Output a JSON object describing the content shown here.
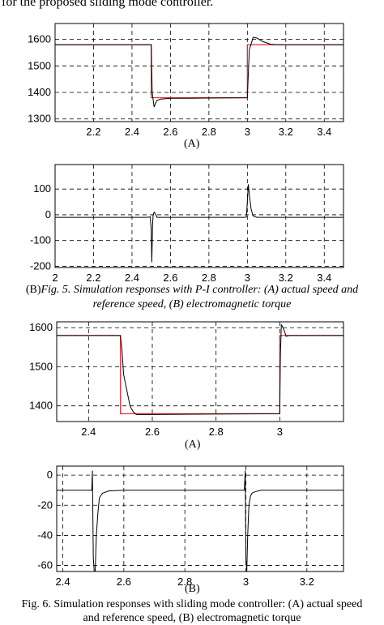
{
  "top_text": "for the proposed sliding mode controller.",
  "captions": {
    "a1": "(A)",
    "fig5_prefix": "(B)",
    "fig5_line1": "Fig. 5. Simulation responses with P-I controller: (A) actual speed and",
    "fig5_line2": "reference speed, (B) electromagnetic torque",
    "a2": "(A)",
    "b2": "(B)",
    "fig6_line1": "Fig. 6. Simulation responses with sliding mode controller: (A) actual speed",
    "fig6_line2": "and reference speed, (B) electromagnetic torque"
  },
  "colors": {
    "reference": "#e8262b",
    "actual": "#000000",
    "grid": "#000000"
  },
  "chart_data": [
    {
      "type": "line",
      "title": "",
      "xlabel": "",
      "ylabel": "",
      "xlim": [
        2.0,
        3.5
      ],
      "ylim": [
        1290,
        1660
      ],
      "xticks": [
        "2.2",
        "2.4",
        "2.6",
        "2.8",
        "3",
        "3.2",
        "3.4"
      ],
      "yticks": [
        "1300",
        "1400",
        "1500",
        "1600"
      ],
      "grid": true,
      "series": [
        {
          "role": "reference",
          "color": "#e8262b",
          "x": [
            2.0,
            2.5,
            2.5,
            3.0,
            3.0,
            3.5
          ],
          "y": [
            1580,
            1580,
            1380,
            1380,
            1580,
            1580
          ]
        },
        {
          "role": "actual",
          "color": "#000000",
          "x": [
            2.0,
            2.5,
            2.505,
            2.515,
            2.52,
            2.53,
            2.55,
            2.6,
            2.7,
            3.0,
            3.01,
            3.03,
            3.05,
            3.08,
            3.12,
            3.15,
            3.5
          ],
          "y": [
            1580,
            1580,
            1400,
            1345,
            1355,
            1370,
            1375,
            1378,
            1378,
            1380,
            1560,
            1608,
            1605,
            1592,
            1582,
            1580,
            1580
          ]
        }
      ]
    },
    {
      "type": "line",
      "title": "",
      "xlabel": "",
      "ylabel": "",
      "xlim": [
        2.0,
        3.5
      ],
      "ylim": [
        -205,
        195
      ],
      "xticks": [
        "2",
        "2.2",
        "2.4",
        "2.6",
        "2.8",
        "3",
        "3.2",
        "3.4"
      ],
      "yticks": [
        "100",
        "0",
        "-100",
        "-200"
      ],
      "grid": true,
      "series": [
        {
          "role": "torque",
          "color": "#000000",
          "x": [
            2.0,
            2.48,
            2.495,
            2.5,
            2.503,
            2.507,
            2.51,
            2.515,
            2.52,
            2.53,
            2.6,
            2.99,
            2.995,
            3.0,
            3.005,
            3.01,
            3.02,
            3.03,
            3.05,
            3.5
          ],
          "y": [
            -10,
            -10,
            -8,
            -60,
            -185,
            -40,
            0,
            10,
            5,
            -10,
            -10,
            -10,
            -8,
            50,
            118,
            80,
            20,
            -5,
            -10,
            -10
          ]
        }
      ]
    },
    {
      "type": "line",
      "title": "",
      "xlabel": "",
      "ylabel": "",
      "xlim": [
        2.3,
        3.2
      ],
      "ylim": [
        1360,
        1615
      ],
      "xticks": [
        "2.4",
        "2.6",
        "2.8",
        "3"
      ],
      "yticks": [
        "1400",
        "1500",
        "1600"
      ],
      "grid": true,
      "series": [
        {
          "role": "reference",
          "color": "#e8262b",
          "x": [
            2.3,
            2.5,
            2.5,
            3.0,
            3.0,
            3.2
          ],
          "y": [
            1580,
            1580,
            1380,
            1380,
            1580,
            1580
          ]
        },
        {
          "role": "actual",
          "color": "#000000",
          "x": [
            2.3,
            2.5,
            2.505,
            2.51,
            2.52,
            2.53,
            2.54,
            2.55,
            2.6,
            3.0,
            3.002,
            3.005,
            3.01,
            3.015,
            3.02,
            3.03,
            3.05,
            3.2
          ],
          "y": [
            1580,
            1580,
            1540,
            1480,
            1440,
            1400,
            1385,
            1378,
            1378,
            1380,
            1530,
            1608,
            1600,
            1590,
            1578,
            1580,
            1580,
            1580
          ]
        }
      ]
    },
    {
      "type": "line",
      "title": "",
      "xlabel": "",
      "ylabel": "",
      "xlim": [
        2.38,
        3.32
      ],
      "ylim": [
        -64,
        6
      ],
      "xticks": [
        "2.4",
        "2.6",
        "2.8",
        "3",
        "3.2"
      ],
      "yticks": [
        "0",
        "-20",
        "-40",
        "-60"
      ],
      "grid": true,
      "series": [
        {
          "role": "torque",
          "color": "#000000",
          "x": [
            2.38,
            2.495,
            2.497,
            2.5,
            2.503,
            2.506,
            2.51,
            2.515,
            2.52,
            2.53,
            2.55,
            2.6,
            2.99,
            2.995,
            2.998,
            3.0,
            3.003,
            3.006,
            3.01,
            3.015,
            3.02,
            3.03,
            3.05,
            3.32
          ],
          "y": [
            -10,
            -10,
            3,
            -55,
            -64,
            -64,
            -40,
            -25,
            -15,
            -12,
            -10.5,
            -10,
            -10,
            -10,
            3,
            -55,
            -64,
            -40,
            -20,
            -14,
            -12,
            -11,
            -10,
            -10
          ]
        }
      ]
    }
  ]
}
